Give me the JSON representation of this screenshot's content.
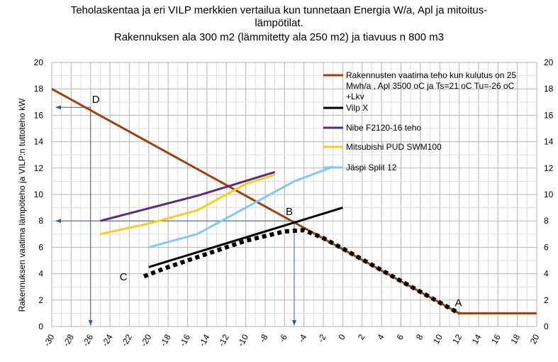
{
  "chart_data": {
    "type": "line",
    "title_lines": [
      "Teholaskentaa ja eri VILP merkkien vertailua kun tunnetaan Energia W/a, Apl ja mitoitus-",
      "lämpötilat.",
      "Rakennuksen ala 300 m2 (lämmitetty ala 250 m2) ja tiavuus n 800 m3"
    ],
    "ylabel": "Rakennuksen vaatima lämpöteho ja VILP:n tuttoteho kW",
    "xlabel": "",
    "xlim": [
      -30,
      20
    ],
    "ylim": [
      0,
      20
    ],
    "x_ticks": [
      -30,
      -28,
      -26,
      -24,
      -22,
      -20,
      -18,
      -16,
      -14,
      -12,
      -10,
      -8,
      -6,
      -4,
      -2,
      0,
      2,
      4,
      6,
      8,
      10,
      12,
      14,
      16,
      18,
      20
    ],
    "y_ticks": [
      0,
      2,
      4,
      6,
      8,
      10,
      12,
      14,
      16,
      18,
      20
    ],
    "grid": true,
    "legend_position": "top-right",
    "series": [
      {
        "name": "Rakennusten vaatima teho kun kulutus on 25 Mwh/a ,  Apl 3500 oC  ja Ts=21 oC  Tu=-26 oC +Lkv",
        "color": "#a0410d",
        "points": [
          [
            -30,
            18
          ],
          [
            12,
            1
          ],
          [
            20,
            1
          ]
        ]
      },
      {
        "name": "Vilp X",
        "color": "#000000",
        "points": [
          [
            -20,
            4.5
          ],
          [
            0,
            9
          ]
        ]
      },
      {
        "name": "Nibe F2120-16 teho",
        "color": "#5b2c7d",
        "points": [
          [
            -25,
            8
          ],
          [
            -15,
            9.9
          ],
          [
            -7,
            11.7
          ]
        ]
      },
      {
        "name": "Mitsubishi PUD SWM100",
        "color": "#ffcc1a",
        "points": [
          [
            -25,
            7
          ],
          [
            -20,
            7.8
          ],
          [
            -15,
            8.8
          ],
          [
            -10,
            10.8
          ],
          [
            -7,
            11.5
          ]
        ]
      },
      {
        "name": "Jäspi Split 12",
        "color": "#80c8ff",
        "points": [
          [
            -20,
            6
          ],
          [
            -15,
            7
          ],
          [
            -10,
            9
          ],
          [
            -5,
            11
          ],
          [
            -1,
            12.1
          ]
        ]
      }
    ],
    "dotted_curve": {
      "color": "#000000",
      "points": [
        [
          -20.5,
          3.8
        ],
        [
          -18,
          4.5
        ],
        [
          -14,
          5.5
        ],
        [
          -10,
          6.5
        ],
        [
          -6,
          7.2
        ],
        [
          -4,
          7.3
        ],
        [
          -2,
          6.7
        ],
        [
          0,
          5.9
        ],
        [
          12,
          1
        ]
      ]
    },
    "reference_lines": [
      {
        "color": "#2e5fa8",
        "x": -26,
        "y": 16.6
      },
      {
        "color": "#2e5fa8",
        "x": -5,
        "y": 8
      }
    ],
    "annotations": [
      {
        "text": "D",
        "x": -26,
        "y": 16.6
      },
      {
        "text": "B",
        "x": -5,
        "y": 8
      },
      {
        "text": "C",
        "x": -23,
        "y": 3.5
      },
      {
        "text": "A",
        "x": 12,
        "y": 1
      }
    ]
  }
}
